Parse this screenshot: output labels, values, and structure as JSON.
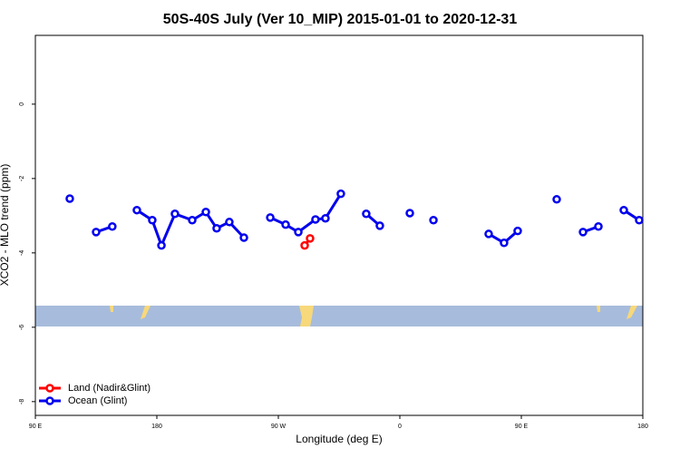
{
  "chart_data": {
    "type": "line",
    "title": "50S-40S July (Ver 10_MIP)   2015-01-01 to 2020-12-31",
    "x_label": "Longitude (deg E)",
    "y_label": "XCO2 - MLO trend (ppm)",
    "xlim": [
      90,
      540
    ],
    "xticks": [
      {
        "value": 90,
        "label": "90 E"
      },
      {
        "value": 180,
        "label": "180"
      },
      {
        "value": 270,
        "label": "90 W"
      },
      {
        "value": 360,
        "label": "0"
      },
      {
        "value": 450,
        "label": "90 E"
      },
      {
        "value": 540,
        "label": "180"
      }
    ],
    "ylim": [
      -8.37,
      1.85
    ],
    "yticks": [
      -8,
      -6,
      -4,
      -2,
      0
    ],
    "legend": "bottom-left",
    "series": [
      {
        "name": "Land (Nadir&Glint)",
        "color": "#ff0000",
        "x": [
          289.5,
          293.5
        ],
        "values": [
          -3.8,
          -3.61
        ]
      },
      {
        "name": "Ocean (Glint)",
        "color": "#0000ee",
        "x": [
          115.5,
          null,
          135,
          147,
          null,
          165.2,
          176.6,
          183.4,
          193.4,
          206.2,
          216.3,
          224.3,
          233.7,
          244.5,
          null,
          264,
          275.4,
          284.8,
          297.5,
          304.9,
          316.3,
          null,
          335.1,
          345.2,
          null,
          367.4,
          null,
          384.9,
          null,
          425.8,
          437.2,
          447.3,
          null,
          476.2,
          null,
          495.7,
          507.1,
          null,
          525.9,
          537.3
        ],
        "values": [
          -2.54,
          null,
          -3.44,
          -3.29,
          null,
          -2.85,
          -3.12,
          -3.8,
          -2.95,
          -3.12,
          -2.9,
          -3.34,
          -3.17,
          -3.59,
          null,
          -3.05,
          -3.24,
          -3.44,
          -3.1,
          -3.07,
          -2.41,
          null,
          -2.95,
          -3.27,
          null,
          -2.93,
          null,
          -3.12,
          null,
          -3.49,
          -3.73,
          -3.41,
          null,
          -2.56,
          null,
          -3.44,
          -3.29,
          null,
          -2.85,
          -3.12
        ]
      }
    ]
  }
}
